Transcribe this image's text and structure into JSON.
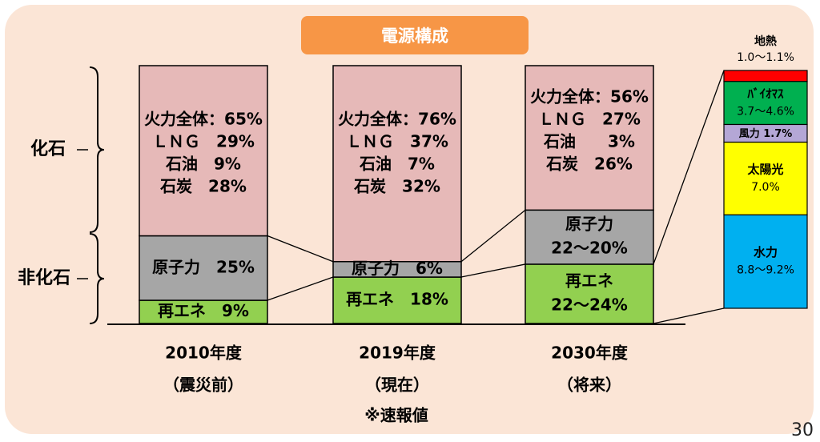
{
  "title": "電源構成",
  "page_number": "30",
  "footnote": "※速報値",
  "brackets": {
    "fossil": "化石",
    "non_fossil": "非化石"
  },
  "colors": {
    "thermal": "#e6b9b8",
    "nuclear": "#a6a6a6",
    "renewable": "#92d050",
    "geothermal": "#ff0000",
    "biomass": "#00b050",
    "wind": "#b4a7d6",
    "solar": "#ffff00",
    "hydro": "#00b0f0",
    "frame": "#fbe5d6",
    "title_bg": "#f79646"
  },
  "chart_data": {
    "type": "bar",
    "stacked": true,
    "unit": "%",
    "categories": [
      {
        "year": "2010年度",
        "note": "（震災前）"
      },
      {
        "year": "2019年度",
        "note": "（現在）"
      },
      {
        "year": "2030年度",
        "note": "（将来）"
      }
    ],
    "series": [
      {
        "key": "renewable",
        "values": [
          9,
          18,
          23
        ]
      },
      {
        "key": "nuclear",
        "values": [
          25,
          6,
          21
        ]
      },
      {
        "key": "thermal",
        "values": [
          65,
          76,
          56
        ]
      }
    ],
    "segment_labels": [
      [
        {
          "key": "renewable",
          "lines": [
            "再エネ　9%"
          ]
        },
        {
          "key": "nuclear",
          "lines": [
            "原子力　25%"
          ]
        },
        {
          "key": "thermal",
          "lines": [
            "火力全体：65%",
            "ＬＮＧ　29%",
            "石油　9%",
            "石炭　28%"
          ]
        }
      ],
      [
        {
          "key": "renewable",
          "lines": [
            "再エネ　18%"
          ]
        },
        {
          "key": "nuclear",
          "lines": [
            "原子力　6%"
          ]
        },
        {
          "key": "thermal",
          "lines": [
            "火力全体：76%",
            "ＬＮＧ　37%",
            "石油　7%",
            "石炭　32%"
          ]
        }
      ],
      [
        {
          "key": "renewable",
          "lines": [
            "再エネ",
            "22～24%"
          ]
        },
        {
          "key": "nuclear",
          "lines": [
            "原子力",
            "22～20%"
          ]
        },
        {
          "key": "thermal",
          "lines": [
            "火力全体：56%",
            "ＬＮＧ　27%",
            "石油　　3%",
            "石炭　26%"
          ]
        }
      ]
    ],
    "breakdown": {
      "category": "2030年度",
      "segments": [
        {
          "key": "hydro",
          "label": "水力",
          "value_text": "8.8～9.2%",
          "value": 9.0
        },
        {
          "key": "solar",
          "label": "太陽光",
          "value_text": "7.0%",
          "value": 7.0
        },
        {
          "key": "wind",
          "label": "風力",
          "value_text": "1.7%",
          "value": 1.7
        },
        {
          "key": "biomass",
          "label": "ﾊﾞｲｵﾏｽ",
          "value_text": "3.7～4.6%",
          "value": 4.15
        },
        {
          "key": "geothermal",
          "label": "地熱",
          "value_text": "1.0～1.1%",
          "value": 1.05
        }
      ]
    }
  }
}
